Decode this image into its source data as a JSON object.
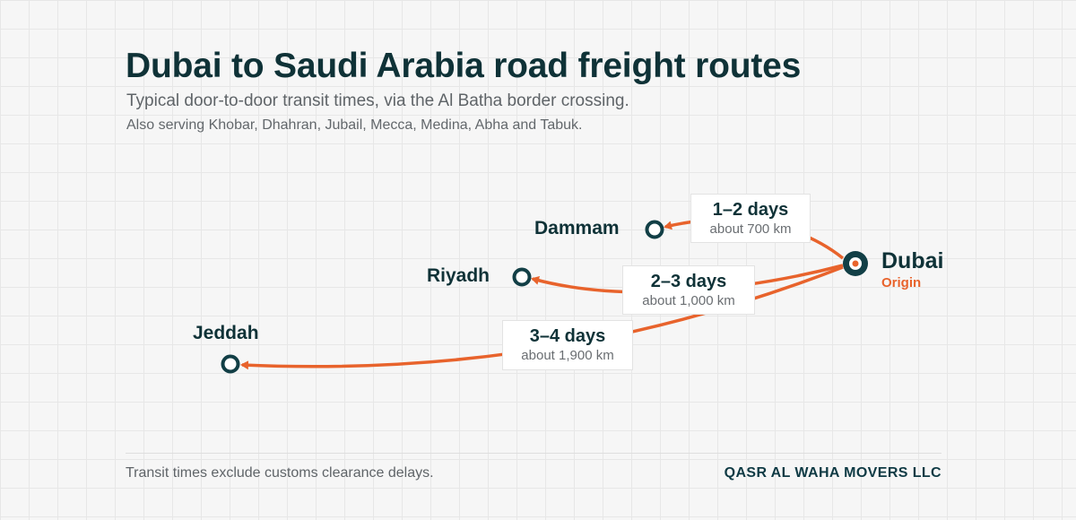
{
  "header": {
    "title": "Dubai to Saudi Arabia road freight routes",
    "subtitle": "Typical door-to-door transit times, via the Al Batha border crossing.",
    "also_serving": "Also serving Khobar, Dhahran, Jubail, Mecca, Medina, Abha and Tabuk."
  },
  "origin": {
    "name": "Dubai",
    "tag": "Origin"
  },
  "routes": [
    {
      "city": "Dammam",
      "transit": "1–2 days",
      "distance": "about 700 km"
    },
    {
      "city": "Riyadh",
      "transit": "2–3 days",
      "distance": "about 1,000 km"
    },
    {
      "city": "Jeddah",
      "transit": "3–4 days",
      "distance": "about 1,900 km"
    }
  ],
  "footer": {
    "note": "Transit times exclude customs clearance delays.",
    "brand": "QASR AL WAHA MOVERS LLC"
  },
  "colors": {
    "route": "#e8632c",
    "node": "#123f46",
    "text": "#0f3237"
  }
}
